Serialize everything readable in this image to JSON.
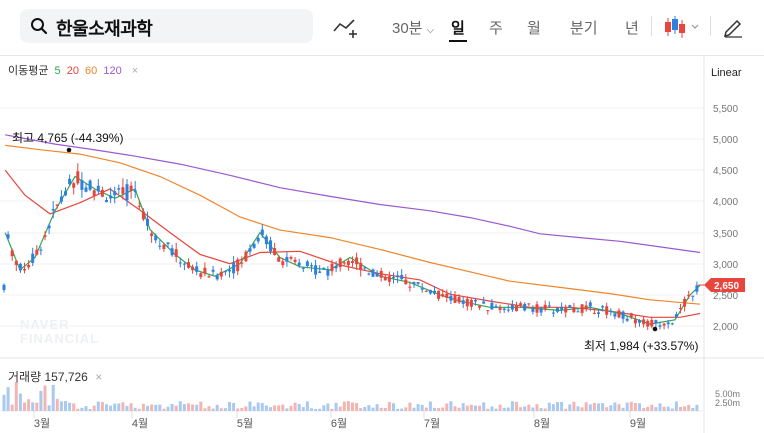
{
  "search": {
    "stock_name": "한울소재과학"
  },
  "toolbar": {
    "interval_label": "30분",
    "periods": [
      "일",
      "주",
      "월",
      "분기",
      "년"
    ],
    "active_period": "일"
  },
  "indicators": {
    "ma_label": "이동평균",
    "ma_values": [
      {
        "label": "5",
        "color": "#2fa84f"
      },
      {
        "label": "20",
        "color": "#e8453c"
      },
      {
        "label": "60",
        "color": "#f0862a"
      },
      {
        "label": "120",
        "color": "#9b59d0"
      }
    ]
  },
  "scale_label": "Linear",
  "watermark": [
    "NAVER",
    "FINANCIAL"
  ],
  "annotations": {
    "high": "최고 4,765 (-44.39%)",
    "low": "최저 1,984 (+33.57%)"
  },
  "current_price": "2,650",
  "volume": {
    "label": "거래량",
    "value": "157,726",
    "axis": [
      "5.00m",
      "2.50m"
    ]
  },
  "colors": {
    "up": "#e8453c",
    "down": "#2d7fe0",
    "price_tag": "#e8453c"
  },
  "chart_data": {
    "type": "candlestick",
    "y_axis": {
      "ticks": [
        "5,500",
        "5,000",
        "4,500",
        "4,000",
        "3,500",
        "3,000",
        "2,500",
        "2,000"
      ],
      "range": [
        1800,
        5800
      ]
    },
    "x_axis": {
      "ticks": [
        "3월",
        "4월",
        "5월",
        "6월",
        "7월",
        "8월",
        "9월"
      ]
    },
    "series": [
      {
        "name": "120",
        "values": [
          [
            5.2,
            5070
          ],
          [
            25,
            5010
          ],
          [
            55,
            4920
          ],
          [
            90,
            4840
          ],
          [
            130,
            4740
          ],
          [
            180,
            4600
          ],
          [
            230,
            4420
          ],
          [
            280,
            4220
          ],
          [
            330,
            4080
          ],
          [
            380,
            3950
          ],
          [
            430,
            3850
          ],
          [
            470,
            3740
          ],
          [
            510,
            3600
          ],
          [
            540,
            3480
          ],
          [
            580,
            3420
          ],
          [
            620,
            3360
          ],
          [
            660,
            3270
          ],
          [
            700,
            3180
          ]
        ]
      },
      {
        "name": "60",
        "values": [
          [
            5.2,
            4900
          ],
          [
            40,
            4830
          ],
          [
            80,
            4760
          ],
          [
            120,
            4620
          ],
          [
            160,
            4400
          ],
          [
            200,
            4100
          ],
          [
            240,
            3750
          ],
          [
            280,
            3540
          ],
          [
            330,
            3420
          ],
          [
            380,
            3230
          ],
          [
            430,
            3020
          ],
          [
            470,
            2870
          ],
          [
            510,
            2720
          ],
          [
            560,
            2620
          ],
          [
            610,
            2520
          ],
          [
            650,
            2420
          ],
          [
            700,
            2350
          ]
        ]
      },
      {
        "name": "20",
        "values": [
          [
            5.2,
            4500
          ],
          [
            25,
            4100
          ],
          [
            50,
            3800
          ],
          [
            80,
            3980
          ],
          [
            110,
            4200
          ],
          [
            140,
            3860
          ],
          [
            170,
            3500
          ],
          [
            200,
            3150
          ],
          [
            230,
            3000
          ],
          [
            260,
            3180
          ],
          [
            300,
            3200
          ],
          [
            340,
            2980
          ],
          [
            380,
            2840
          ],
          [
            420,
            2740
          ],
          [
            450,
            2510
          ],
          [
            490,
            2400
          ],
          [
            530,
            2300
          ],
          [
            570,
            2300
          ],
          [
            610,
            2240
          ],
          [
            650,
            2140
          ],
          [
            680,
            2140
          ],
          [
            700,
            2200
          ]
        ]
      },
      {
        "name": "5",
        "values": [
          [
            5.2,
            3500
          ],
          [
            20,
            2900
          ],
          [
            35,
            3100
          ],
          [
            55,
            3850
          ],
          [
            75,
            4400
          ],
          [
            95,
            4200
          ],
          [
            115,
            4050
          ],
          [
            135,
            4200
          ],
          [
            150,
            3550
          ],
          [
            175,
            3150
          ],
          [
            195,
            2900
          ],
          [
            215,
            2800
          ],
          [
            240,
            3000
          ],
          [
            260,
            3500
          ],
          [
            280,
            3100
          ],
          [
            300,
            2950
          ],
          [
            330,
            2900
          ],
          [
            350,
            3100
          ],
          [
            380,
            2800
          ],
          [
            410,
            2700
          ],
          [
            440,
            2500
          ],
          [
            460,
            2400
          ],
          [
            490,
            2300
          ],
          [
            520,
            2300
          ],
          [
            560,
            2250
          ],
          [
            590,
            2300
          ],
          [
            620,
            2200
          ],
          [
            650,
            2030
          ],
          [
            675,
            2100
          ],
          [
            690,
            2500
          ],
          [
            700,
            2650
          ]
        ]
      }
    ]
  }
}
